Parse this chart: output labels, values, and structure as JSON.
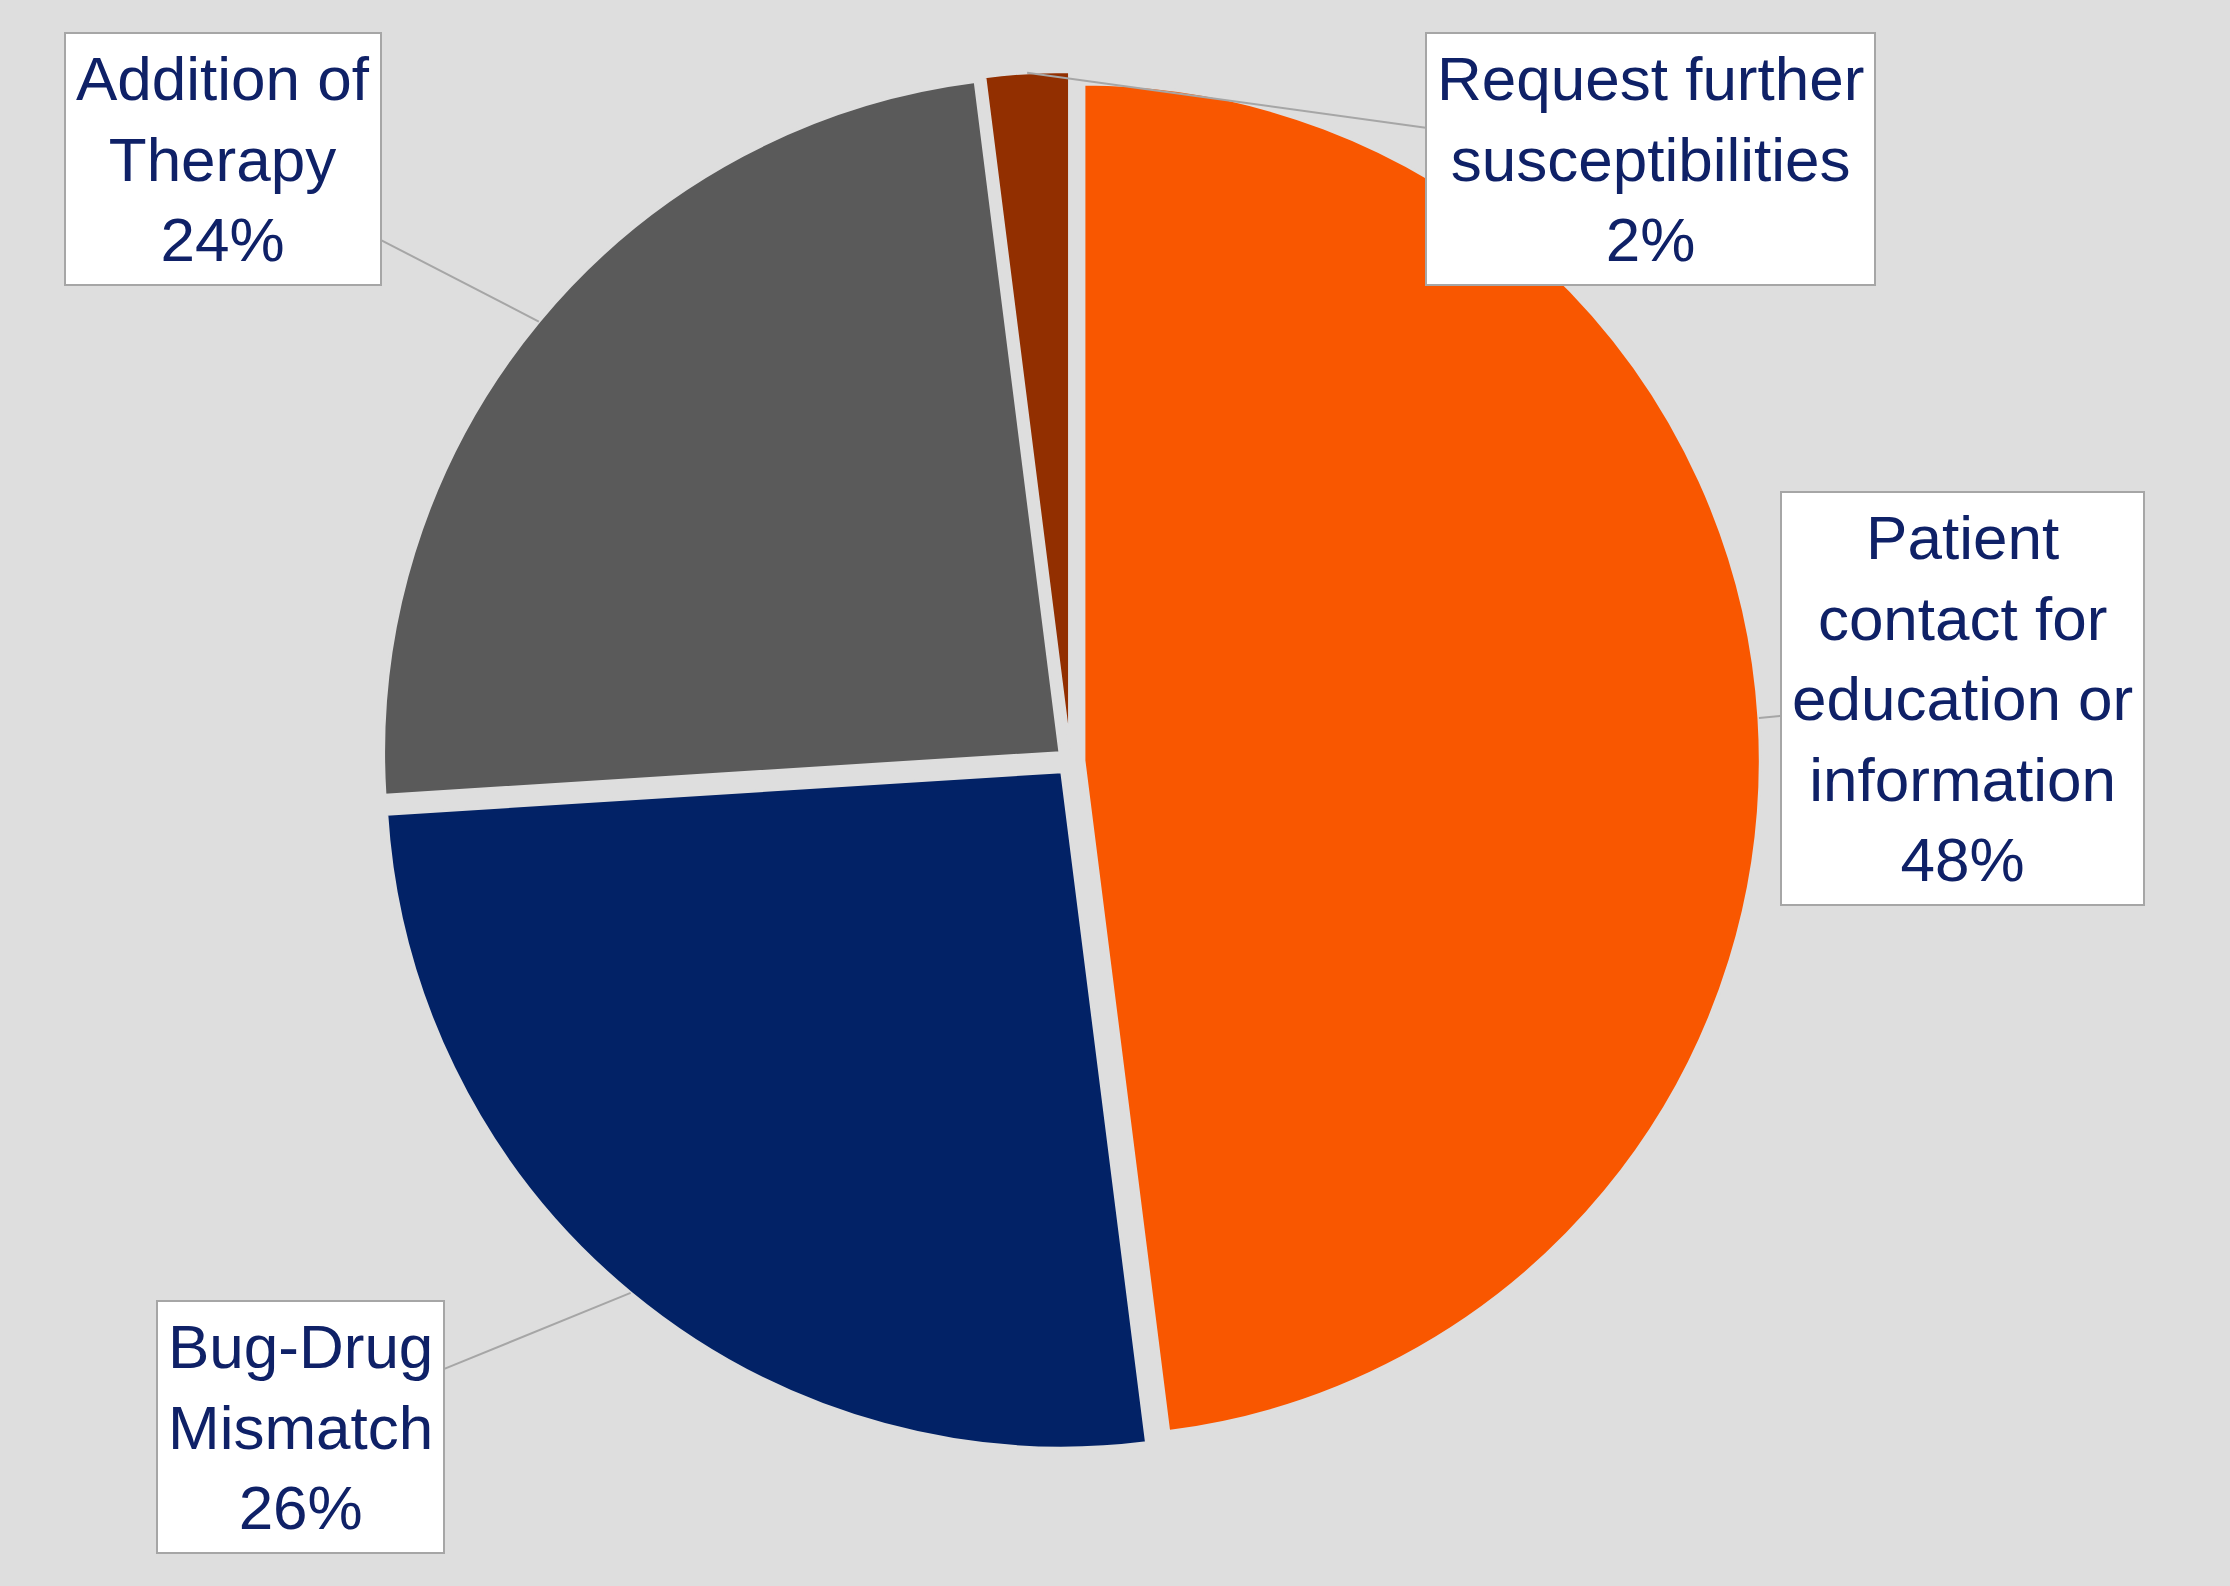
{
  "chart_data": {
    "type": "pie",
    "categories": [
      "Patient contact for education or information",
      "Bug-Drug Mismatch",
      "Addition of Therapy",
      "Request further susceptibilities"
    ],
    "values": [
      48,
      26,
      24,
      2
    ],
    "value_labels": [
      "48%",
      "26%",
      "24%",
      "2%"
    ],
    "colors": [
      "#f95700",
      "#022266",
      "#5a5a5a",
      "#922f00"
    ],
    "legend": false
  }
}
